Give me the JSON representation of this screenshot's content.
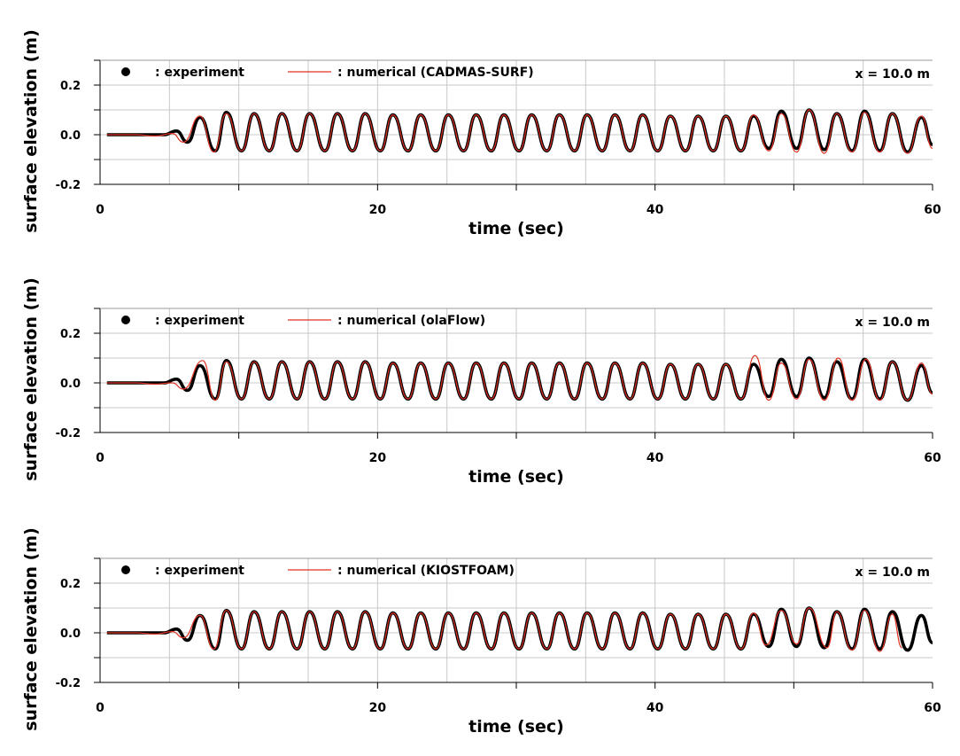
{
  "chart_data": [
    {
      "type": "line",
      "title": "",
      "xlabel": "time (sec)",
      "ylabel": "surface elevation (m)",
      "xlim": [
        0,
        60
      ],
      "ylim": [
        -0.2,
        0.3
      ],
      "xticks": [
        0,
        20,
        40,
        60
      ],
      "xtick_labels": [
        "0",
        "20",
        "40",
        "60"
      ],
      "yticks": [
        -0.2,
        0.0,
        0.2
      ],
      "ytick_labels": [
        "-0.2",
        "0.0",
        "0.2"
      ],
      "grid": true,
      "legend_position": "top-left",
      "annotation": "x = 10.0 m",
      "series": [
        {
          "name": ": experiment",
          "color": "#000000",
          "style": "thick",
          "x": [
            0.5,
            2.5,
            4.6,
            5.5,
            6.3,
            7.2,
            8.3,
            9.1,
            10.2,
            11.1,
            12.2,
            13.1,
            14.2,
            15.1,
            16.2,
            17.1,
            18.2,
            19.1,
            20.2,
            21.1,
            22.2,
            23.1,
            24.2,
            25.1,
            26.2,
            27.1,
            28.2,
            29.1,
            30.2,
            31.1,
            32.2,
            33.1,
            34.2,
            35.1,
            36.2,
            37.1,
            38.2,
            39.1,
            40.2,
            41.1,
            42.2,
            43.1,
            44.2,
            45.1,
            46.2,
            47.1,
            48.2,
            49.1,
            50.2,
            51.1,
            52.2,
            53.1,
            54.2,
            55.1,
            56.2,
            57.1,
            58.2,
            59.2,
            60.0
          ],
          "y": [
            0.0,
            0.0,
            0.0,
            0.015,
            -0.03,
            0.07,
            -0.065,
            0.09,
            -0.065,
            0.085,
            -0.065,
            0.085,
            -0.065,
            0.085,
            -0.065,
            0.085,
            -0.065,
            0.085,
            -0.065,
            0.08,
            -0.065,
            0.08,
            -0.065,
            0.08,
            -0.065,
            0.08,
            -0.065,
            0.08,
            -0.065,
            0.08,
            -0.065,
            0.08,
            -0.065,
            0.08,
            -0.065,
            0.08,
            -0.065,
            0.08,
            -0.065,
            0.075,
            -0.065,
            0.075,
            -0.065,
            0.075,
            -0.065,
            0.075,
            -0.055,
            0.095,
            -0.055,
            0.1,
            -0.06,
            0.085,
            -0.065,
            0.095,
            -0.065,
            0.085,
            -0.07,
            0.07,
            -0.04
          ]
        },
        {
          "name": ": numerical (CADMAS-SURF)",
          "color": "#e03020",
          "style": "thin",
          "x": [
            0.5,
            2.5,
            4.0,
            5.2,
            6.0,
            7.2,
            8.2,
            9.1,
            10.2,
            11.1,
            12.2,
            13.1,
            14.2,
            15.1,
            16.2,
            17.1,
            18.2,
            19.1,
            20.2,
            21.1,
            22.2,
            23.1,
            24.2,
            25.1,
            26.2,
            27.1,
            28.2,
            29.1,
            30.2,
            31.1,
            32.2,
            33.1,
            34.2,
            35.1,
            36.2,
            37.1,
            38.2,
            39.1,
            40.2,
            41.1,
            42.2,
            43.1,
            44.2,
            45.1,
            46.2,
            47.1,
            48.2,
            49.1,
            50.2,
            51.1,
            52.2,
            53.1,
            54.2,
            55.1,
            56.2,
            57.1,
            58.2,
            59.2,
            60.0
          ],
          "y": [
            0.0,
            0.0,
            -0.005,
            0.005,
            -0.03,
            0.075,
            -0.07,
            0.085,
            -0.065,
            0.085,
            -0.065,
            0.085,
            -0.065,
            0.085,
            -0.065,
            0.085,
            -0.065,
            0.085,
            -0.065,
            0.08,
            -0.065,
            0.08,
            -0.065,
            0.08,
            -0.065,
            0.08,
            -0.065,
            0.08,
            -0.065,
            0.08,
            -0.065,
            0.08,
            -0.065,
            0.08,
            -0.065,
            0.08,
            -0.065,
            0.08,
            -0.065,
            0.075,
            -0.065,
            0.075,
            -0.065,
            0.075,
            -0.065,
            0.08,
            -0.065,
            0.085,
            -0.07,
            0.1,
            -0.075,
            0.085,
            -0.07,
            0.09,
            -0.07,
            0.085,
            -0.075,
            0.075,
            -0.055
          ]
        }
      ]
    },
    {
      "type": "line",
      "title": "",
      "xlabel": "time (sec)",
      "ylabel": "surface elevation (m)",
      "xlim": [
        0,
        60
      ],
      "ylim": [
        -0.2,
        0.3
      ],
      "xticks": [
        0,
        20,
        40,
        60
      ],
      "xtick_labels": [
        "0",
        "20",
        "40",
        "60"
      ],
      "yticks": [
        -0.2,
        0.0,
        0.2
      ],
      "ytick_labels": [
        "-0.2",
        "0.0",
        "0.2"
      ],
      "grid": true,
      "legend_position": "top-left",
      "annotation": "x = 10.0 m",
      "series": [
        {
          "name": ": experiment",
          "color": "#000000",
          "style": "thick",
          "x": [
            0.5,
            2.5,
            4.6,
            5.5,
            6.3,
            7.2,
            8.3,
            9.1,
            10.2,
            11.1,
            12.2,
            13.1,
            14.2,
            15.1,
            16.2,
            17.1,
            18.2,
            19.1,
            20.2,
            21.1,
            22.2,
            23.1,
            24.2,
            25.1,
            26.2,
            27.1,
            28.2,
            29.1,
            30.2,
            31.1,
            32.2,
            33.1,
            34.2,
            35.1,
            36.2,
            37.1,
            38.2,
            39.1,
            40.2,
            41.1,
            42.2,
            43.1,
            44.2,
            45.1,
            46.2,
            47.1,
            48.2,
            49.1,
            50.2,
            51.1,
            52.2,
            53.1,
            54.2,
            55.1,
            56.2,
            57.1,
            58.2,
            59.2,
            60.0
          ],
          "y": [
            0.0,
            0.0,
            0.0,
            0.015,
            -0.03,
            0.07,
            -0.065,
            0.09,
            -0.065,
            0.085,
            -0.065,
            0.085,
            -0.065,
            0.085,
            -0.065,
            0.085,
            -0.065,
            0.085,
            -0.065,
            0.08,
            -0.065,
            0.08,
            -0.065,
            0.08,
            -0.065,
            0.08,
            -0.065,
            0.08,
            -0.065,
            0.08,
            -0.065,
            0.08,
            -0.065,
            0.08,
            -0.065,
            0.08,
            -0.065,
            0.08,
            -0.065,
            0.075,
            -0.065,
            0.075,
            -0.065,
            0.075,
            -0.065,
            0.075,
            -0.055,
            0.095,
            -0.055,
            0.1,
            -0.06,
            0.085,
            -0.065,
            0.095,
            -0.065,
            0.085,
            -0.07,
            0.07,
            -0.04
          ]
        },
        {
          "name": ": numerical (olaFlow)",
          "color": "#e03020",
          "style": "thin",
          "x": [
            0.5,
            2.5,
            4.0,
            5.2,
            6.0,
            7.4,
            8.3,
            9.1,
            10.2,
            11.1,
            12.2,
            13.1,
            14.2,
            15.1,
            16.2,
            17.1,
            18.2,
            19.1,
            20.2,
            21.1,
            22.2,
            23.1,
            24.2,
            25.1,
            26.2,
            27.1,
            28.2,
            29.1,
            30.2,
            31.1,
            32.2,
            33.1,
            34.2,
            35.1,
            36.2,
            37.1,
            38.2,
            39.1,
            40.2,
            41.1,
            42.2,
            43.1,
            44.2,
            45.1,
            46.2,
            47.2,
            48.2,
            49.1,
            50.2,
            51.1,
            52.2,
            53.2,
            54.2,
            55.2,
            56.2,
            57.1,
            58.2,
            59.2,
            60.0
          ],
          "y": [
            0.0,
            0.0,
            -0.005,
            0.0,
            -0.025,
            0.09,
            -0.07,
            0.085,
            -0.065,
            0.085,
            -0.065,
            0.085,
            -0.065,
            0.085,
            -0.065,
            0.085,
            -0.065,
            0.085,
            -0.065,
            0.08,
            -0.065,
            0.08,
            -0.065,
            0.08,
            -0.065,
            0.08,
            -0.065,
            0.08,
            -0.065,
            0.08,
            -0.065,
            0.08,
            -0.065,
            0.08,
            -0.065,
            0.08,
            -0.065,
            0.08,
            -0.065,
            0.075,
            -0.065,
            0.075,
            -0.065,
            0.075,
            -0.065,
            0.11,
            -0.07,
            0.08,
            -0.065,
            0.095,
            -0.07,
            0.1,
            -0.07,
            0.095,
            -0.07,
            0.085,
            -0.07,
            0.08,
            -0.045
          ]
        }
      ]
    },
    {
      "type": "line",
      "title": "",
      "xlabel": "time (sec)",
      "ylabel": "surface elevation (m)",
      "xlim": [
        0,
        60
      ],
      "ylim": [
        -0.2,
        0.3
      ],
      "xticks": [
        0,
        20,
        40,
        60
      ],
      "xtick_labels": [
        "0",
        "20",
        "40",
        "60"
      ],
      "yticks": [
        -0.2,
        0.0,
        0.2
      ],
      "ytick_labels": [
        "-0.2",
        "0.0",
        "0.2"
      ],
      "grid": true,
      "legend_position": "top-left",
      "annotation": "x = 10.0 m",
      "series": [
        {
          "name": ": experiment",
          "color": "#000000",
          "style": "thick",
          "x": [
            0.5,
            2.5,
            4.6,
            5.5,
            6.3,
            7.2,
            8.3,
            9.1,
            10.2,
            11.1,
            12.2,
            13.1,
            14.2,
            15.1,
            16.2,
            17.1,
            18.2,
            19.1,
            20.2,
            21.1,
            22.2,
            23.1,
            24.2,
            25.1,
            26.2,
            27.1,
            28.2,
            29.1,
            30.2,
            31.1,
            32.2,
            33.1,
            34.2,
            35.1,
            36.2,
            37.1,
            38.2,
            39.1,
            40.2,
            41.1,
            42.2,
            43.1,
            44.2,
            45.1,
            46.2,
            47.1,
            48.2,
            49.1,
            50.2,
            51.1,
            52.2,
            53.1,
            54.2,
            55.1,
            56.2,
            57.1,
            58.2,
            59.2,
            60.0
          ],
          "y": [
            0.0,
            0.0,
            0.0,
            0.015,
            -0.03,
            0.07,
            -0.065,
            0.09,
            -0.065,
            0.085,
            -0.065,
            0.085,
            -0.065,
            0.085,
            -0.065,
            0.085,
            -0.065,
            0.085,
            -0.065,
            0.08,
            -0.065,
            0.08,
            -0.065,
            0.08,
            -0.065,
            0.08,
            -0.065,
            0.08,
            -0.065,
            0.08,
            -0.065,
            0.08,
            -0.065,
            0.08,
            -0.065,
            0.08,
            -0.065,
            0.08,
            -0.065,
            0.075,
            -0.065,
            0.075,
            -0.065,
            0.075,
            -0.065,
            0.075,
            -0.055,
            0.095,
            -0.055,
            0.1,
            -0.06,
            0.085,
            -0.065,
            0.095,
            -0.065,
            0.085,
            -0.07,
            0.07,
            -0.04
          ]
        },
        {
          "name": ": numerical (KIOSTFOAM)",
          "color": "#e03020",
          "style": "thin",
          "x": [
            0.5,
            2.5,
            4.0,
            5.2,
            6.0,
            7.2,
            8.2,
            9.1,
            10.2,
            11.1,
            12.2,
            13.1,
            14.2,
            15.1,
            16.2,
            17.1,
            18.2,
            19.1,
            20.2,
            21.1,
            22.2,
            23.1,
            24.2,
            25.1,
            26.2,
            27.1,
            28.2,
            29.1,
            30.2,
            31.1,
            32.2,
            33.1,
            34.2,
            35.1,
            36.2,
            37.1,
            38.2,
            39.1,
            40.2,
            41.1,
            42.2,
            43.1,
            44.2,
            45.1,
            46.2,
            47.1,
            48.0,
            49.1,
            50.2,
            51.1,
            52.4,
            53.1,
            54.2,
            55.1,
            56.2,
            57.1,
            57.8
          ],
          "y": [
            0.0,
            0.0,
            -0.005,
            0.005,
            -0.02,
            0.07,
            -0.065,
            0.09,
            -0.065,
            0.085,
            -0.065,
            0.085,
            -0.065,
            0.085,
            -0.065,
            0.085,
            -0.065,
            0.085,
            -0.065,
            0.08,
            -0.065,
            0.08,
            -0.065,
            0.08,
            -0.065,
            0.08,
            -0.065,
            0.08,
            -0.065,
            0.08,
            -0.065,
            0.08,
            -0.065,
            0.08,
            -0.065,
            0.08,
            -0.065,
            0.08,
            -0.065,
            0.075,
            -0.065,
            0.075,
            -0.065,
            0.075,
            -0.065,
            0.08,
            -0.05,
            0.09,
            -0.045,
            0.1,
            -0.06,
            0.085,
            -0.07,
            0.09,
            -0.075,
            0.075,
            -0.06
          ]
        }
      ]
    }
  ]
}
